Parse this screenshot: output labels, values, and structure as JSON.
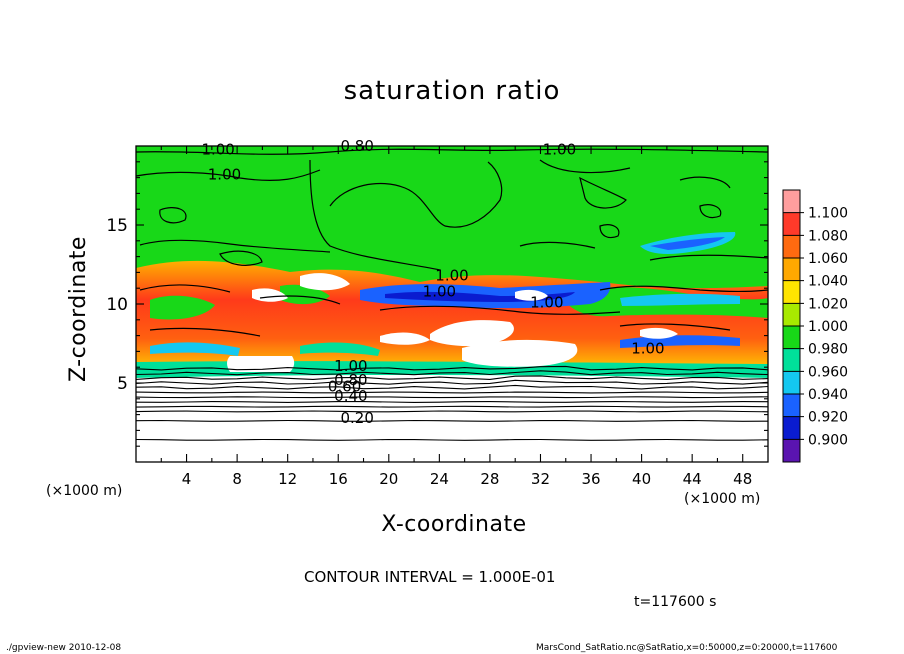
{
  "chart_data": {
    "type": "heatmap",
    "title": "saturation ratio",
    "xlabel": "X-coordinate",
    "ylabel": "Z-coordinate",
    "x_unit": "(×1000 m)",
    "y_unit": "(×1000 m)",
    "xlim": [
      0,
      50
    ],
    "ylim": [
      0,
      20
    ],
    "xticks": [
      4,
      8,
      12,
      16,
      20,
      24,
      28,
      32,
      36,
      40,
      44,
      48
    ],
    "yticks": [
      5,
      10,
      15
    ],
    "colorbar": {
      "levels": [
        "1.100",
        "1.080",
        "1.060",
        "1.040",
        "1.020",
        "1.000",
        "0.980",
        "0.960",
        "0.940",
        "0.920",
        "0.900"
      ],
      "colors": [
        "#ff9e9e",
        "#ff3a2a",
        "#ff6a10",
        "#ffa800",
        "#ffe400",
        "#a8ea00",
        "#18d818",
        "#00e09a",
        "#14c8f0",
        "#1a62ff",
        "#0a1cd0",
        "#5a14b0"
      ]
    },
    "contour_labels": [
      {
        "text": "1.00",
        "x": 6.5,
        "z": 19.6
      },
      {
        "text": "1.00",
        "x": 7.0,
        "z": 18.0
      },
      {
        "text": "0.80",
        "x": 17.5,
        "z": 19.8
      },
      {
        "text": "1.00",
        "x": 33.5,
        "z": 19.6
      },
      {
        "text": "1.00",
        "x": 25.0,
        "z": 11.6
      },
      {
        "text": "1.00",
        "x": 24.0,
        "z": 10.6
      },
      {
        "text": "1.00",
        "x": 32.5,
        "z": 9.9
      },
      {
        "text": "1.00",
        "x": 40.5,
        "z": 7.0
      },
      {
        "text": "1.00",
        "x": 17.0,
        "z": 5.9
      },
      {
        "text": "0.80",
        "x": 17.0,
        "z": 5.0
      },
      {
        "text": "0.60",
        "x": 16.5,
        "z": 4.6
      },
      {
        "text": "0.40",
        "x": 17.0,
        "z": 4.0
      },
      {
        "text": "0.20",
        "x": 17.5,
        "z": 2.6
      }
    ],
    "lower_contours_z": [
      5.9,
      5.6,
      5.3,
      5.0,
      4.7,
      4.4,
      4.1,
      3.8,
      3.5,
      3.2,
      2.6,
      1.4
    ]
  },
  "contour_interval": "CONTOUR INTERVAL = 1.000E-01",
  "time_label": "t=117600  s",
  "footer_left": "./gpview-new   2010-12-08",
  "footer_right": "MarsCond_SatRatio.nc@SatRatio,x=0:50000,z=0:20000,t=117600"
}
